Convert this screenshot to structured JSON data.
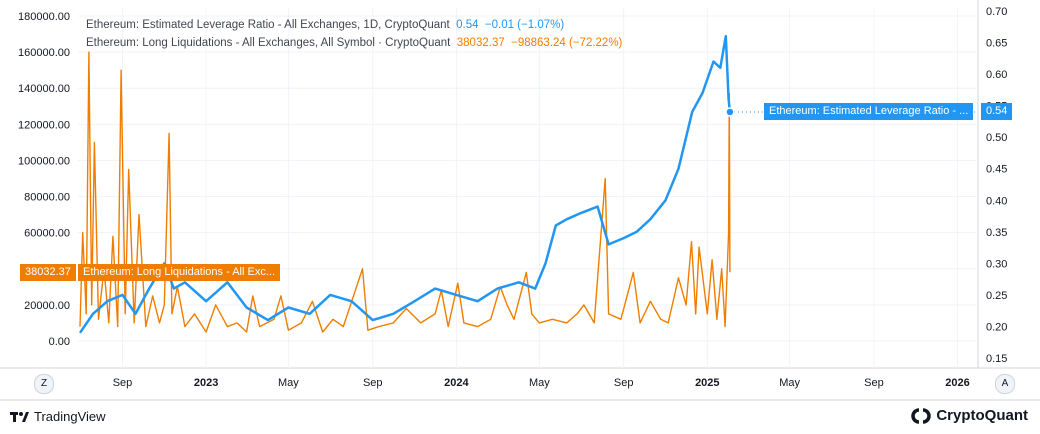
{
  "colors": {
    "leverage": "#2196f3",
    "liquidations": "#ef7d00",
    "grid": "#f0f3fa",
    "axis": "#d1d4dc"
  },
  "legend": {
    "leverage": {
      "name": "Ethereum: Estimated Leverage Ratio - All Exchanges, 1D, CryptoQuant",
      "value": "0.54",
      "change": "−0.01 (−1.07%)"
    },
    "liquidations": {
      "name": "Ethereum: Long Liquidations - All Exchanges, All Symbol · CryptoQuant",
      "value": "38032.37",
      "change": "−98863.24 (−72.22%)"
    }
  },
  "tags": {
    "leverage_label": "Ethereum: Estimated Leverage Ratio - ...",
    "leverage_value": "0.54",
    "liq_value": "38032.37",
    "liq_label": "Ethereum: Long Liquidations - All Exc..."
  },
  "scale_buttons": {
    "left": "Z",
    "right": "A"
  },
  "footer": {
    "tradingview": "TradingView",
    "cryptoquant": "CryptoQuant"
  },
  "chart_data": {
    "type": "line",
    "x_ticks": [
      "Sep",
      "2023",
      "May",
      "Sep",
      "2024",
      "May",
      "Sep",
      "2025",
      "May",
      "Sep",
      "2026"
    ],
    "y_left_ticks": [
      "180000.00",
      "160000.00",
      "140000.00",
      "120000.00",
      "100000.00",
      "80000.00",
      "60000.00",
      "40000.00",
      "20000.00",
      "0.00"
    ],
    "y_right_ticks": [
      "0.70",
      "0.65",
      "0.60",
      "0.55",
      "0.50",
      "0.45",
      "0.40",
      "0.35",
      "0.30",
      "0.25",
      "0.20",
      "0.15"
    ],
    "y_left_range": [
      0,
      180000
    ],
    "y_right_range": [
      0.15,
      0.7
    ],
    "x_range": [
      "2022-07-01",
      "2026-03-01"
    ],
    "series": [
      {
        "name": "Ethereum: Estimated Leverage Ratio - All Exchanges, 1D, CryptoQuant",
        "axis": "right",
        "points": [
          [
            "2022-07-01",
            0.19
          ],
          [
            "2022-07-20",
            0.22
          ],
          [
            "2022-08-10",
            0.24
          ],
          [
            "2022-09-01",
            0.25
          ],
          [
            "2022-09-20",
            0.22
          ],
          [
            "2022-10-10",
            0.26
          ],
          [
            "2022-11-01",
            0.3
          ],
          [
            "2022-11-15",
            0.26
          ],
          [
            "2022-12-01",
            0.27
          ],
          [
            "2023-01-01",
            0.24
          ],
          [
            "2023-02-01",
            0.27
          ],
          [
            "2023-03-01",
            0.23
          ],
          [
            "2023-04-01",
            0.21
          ],
          [
            "2023-05-01",
            0.23
          ],
          [
            "2023-06-01",
            0.22
          ],
          [
            "2023-07-01",
            0.25
          ],
          [
            "2023-08-01",
            0.24
          ],
          [
            "2023-09-01",
            0.21
          ],
          [
            "2023-10-01",
            0.22
          ],
          [
            "2023-11-01",
            0.24
          ],
          [
            "2023-12-01",
            0.26
          ],
          [
            "2024-01-01",
            0.25
          ],
          [
            "2024-02-01",
            0.24
          ],
          [
            "2024-03-01",
            0.26
          ],
          [
            "2024-04-01",
            0.27
          ],
          [
            "2024-04-25",
            0.26
          ],
          [
            "2024-05-10",
            0.3
          ],
          [
            "2024-05-25",
            0.36
          ],
          [
            "2024-06-10",
            0.37
          ],
          [
            "2024-07-01",
            0.38
          ],
          [
            "2024-07-25",
            0.39
          ],
          [
            "2024-08-10",
            0.33
          ],
          [
            "2024-09-01",
            0.34
          ],
          [
            "2024-09-20",
            0.35
          ],
          [
            "2024-10-10",
            0.37
          ],
          [
            "2024-11-01",
            0.4
          ],
          [
            "2024-11-20",
            0.45
          ],
          [
            "2024-12-10",
            0.54
          ],
          [
            "2024-12-25",
            0.57
          ],
          [
            "2025-01-10",
            0.62
          ],
          [
            "2025-01-20",
            0.61
          ],
          [
            "2025-01-28",
            0.66
          ],
          [
            "2025-02-01",
            0.56
          ],
          [
            "2025-02-03",
            0.54
          ]
        ]
      },
      {
        "name": "Ethereum: Long Liquidations - All Exchanges, All Symbol · CryptoQuant",
        "axis": "left",
        "points": [
          [
            "2022-07-01",
            8000
          ],
          [
            "2022-07-05",
            60000
          ],
          [
            "2022-07-10",
            15000
          ],
          [
            "2022-07-14",
            160000
          ],
          [
            "2022-07-18",
            20000
          ],
          [
            "2022-07-22",
            110000
          ],
          [
            "2022-07-28",
            12000
          ],
          [
            "2022-08-05",
            40000
          ],
          [
            "2022-08-12",
            10000
          ],
          [
            "2022-08-18",
            58000
          ],
          [
            "2022-08-25",
            8000
          ],
          [
            "2022-08-30",
            150000
          ],
          [
            "2022-09-05",
            15000
          ],
          [
            "2022-09-10",
            95000
          ],
          [
            "2022-09-18",
            10000
          ],
          [
            "2022-09-25",
            70000
          ],
          [
            "2022-10-05",
            8000
          ],
          [
            "2022-10-15",
            25000
          ],
          [
            "2022-10-25",
            10000
          ],
          [
            "2022-11-01",
            20000
          ],
          [
            "2022-11-08",
            115000
          ],
          [
            "2022-11-12",
            15000
          ],
          [
            "2022-11-20",
            30000
          ],
          [
            "2022-12-01",
            8000
          ],
          [
            "2022-12-15",
            15000
          ],
          [
            "2023-01-01",
            5000
          ],
          [
            "2023-01-15",
            20000
          ],
          [
            "2023-02-01",
            8000
          ],
          [
            "2023-02-15",
            10000
          ],
          [
            "2023-03-01",
            5000
          ],
          [
            "2023-03-10",
            25000
          ],
          [
            "2023-03-20",
            8000
          ],
          [
            "2023-04-10",
            12000
          ],
          [
            "2023-04-20",
            25000
          ],
          [
            "2023-05-01",
            6000
          ],
          [
            "2023-05-20",
            10000
          ],
          [
            "2023-06-05",
            22000
          ],
          [
            "2023-06-20",
            5000
          ],
          [
            "2023-07-05",
            12000
          ],
          [
            "2023-07-20",
            8000
          ],
          [
            "2023-08-17",
            40000
          ],
          [
            "2023-08-25",
            6000
          ],
          [
            "2023-09-10",
            8000
          ],
          [
            "2023-10-01",
            10000
          ],
          [
            "2023-10-20",
            18000
          ],
          [
            "2023-11-10",
            10000
          ],
          [
            "2023-12-01",
            15000
          ],
          [
            "2023-12-10",
            28000
          ],
          [
            "2023-12-20",
            8000
          ],
          [
            "2024-01-03",
            32000
          ],
          [
            "2024-01-12",
            10000
          ],
          [
            "2024-02-01",
            8000
          ],
          [
            "2024-02-20",
            12000
          ],
          [
            "2024-03-05",
            30000
          ],
          [
            "2024-03-15",
            20000
          ],
          [
            "2024-03-25",
            12000
          ],
          [
            "2024-04-12",
            38000
          ],
          [
            "2024-04-20",
            15000
          ],
          [
            "2024-05-01",
            10000
          ],
          [
            "2024-05-20",
            12000
          ],
          [
            "2024-06-10",
            10000
          ],
          [
            "2024-06-25",
            15000
          ],
          [
            "2024-07-05",
            20000
          ],
          [
            "2024-07-20",
            10000
          ],
          [
            "2024-08-05",
            90000
          ],
          [
            "2024-08-10",
            15000
          ],
          [
            "2024-08-28",
            12000
          ],
          [
            "2024-09-15",
            38000
          ],
          [
            "2024-09-25",
            10000
          ],
          [
            "2024-10-10",
            22000
          ],
          [
            "2024-10-25",
            12000
          ],
          [
            "2024-11-05",
            10000
          ],
          [
            "2024-11-20",
            35000
          ],
          [
            "2024-12-01",
            20000
          ],
          [
            "2024-12-09",
            55000
          ],
          [
            "2024-12-15",
            15000
          ],
          [
            "2024-12-20",
            52000
          ],
          [
            "2025-01-01",
            15000
          ],
          [
            "2025-01-08",
            45000
          ],
          [
            "2025-01-15",
            12000
          ],
          [
            "2025-01-22",
            40000
          ],
          [
            "2025-01-27",
            8000
          ],
          [
            "2025-02-01",
            60000
          ],
          [
            "2025-02-02",
            137000
          ],
          [
            "2025-02-03",
            38032.37
          ]
        ]
      }
    ]
  }
}
